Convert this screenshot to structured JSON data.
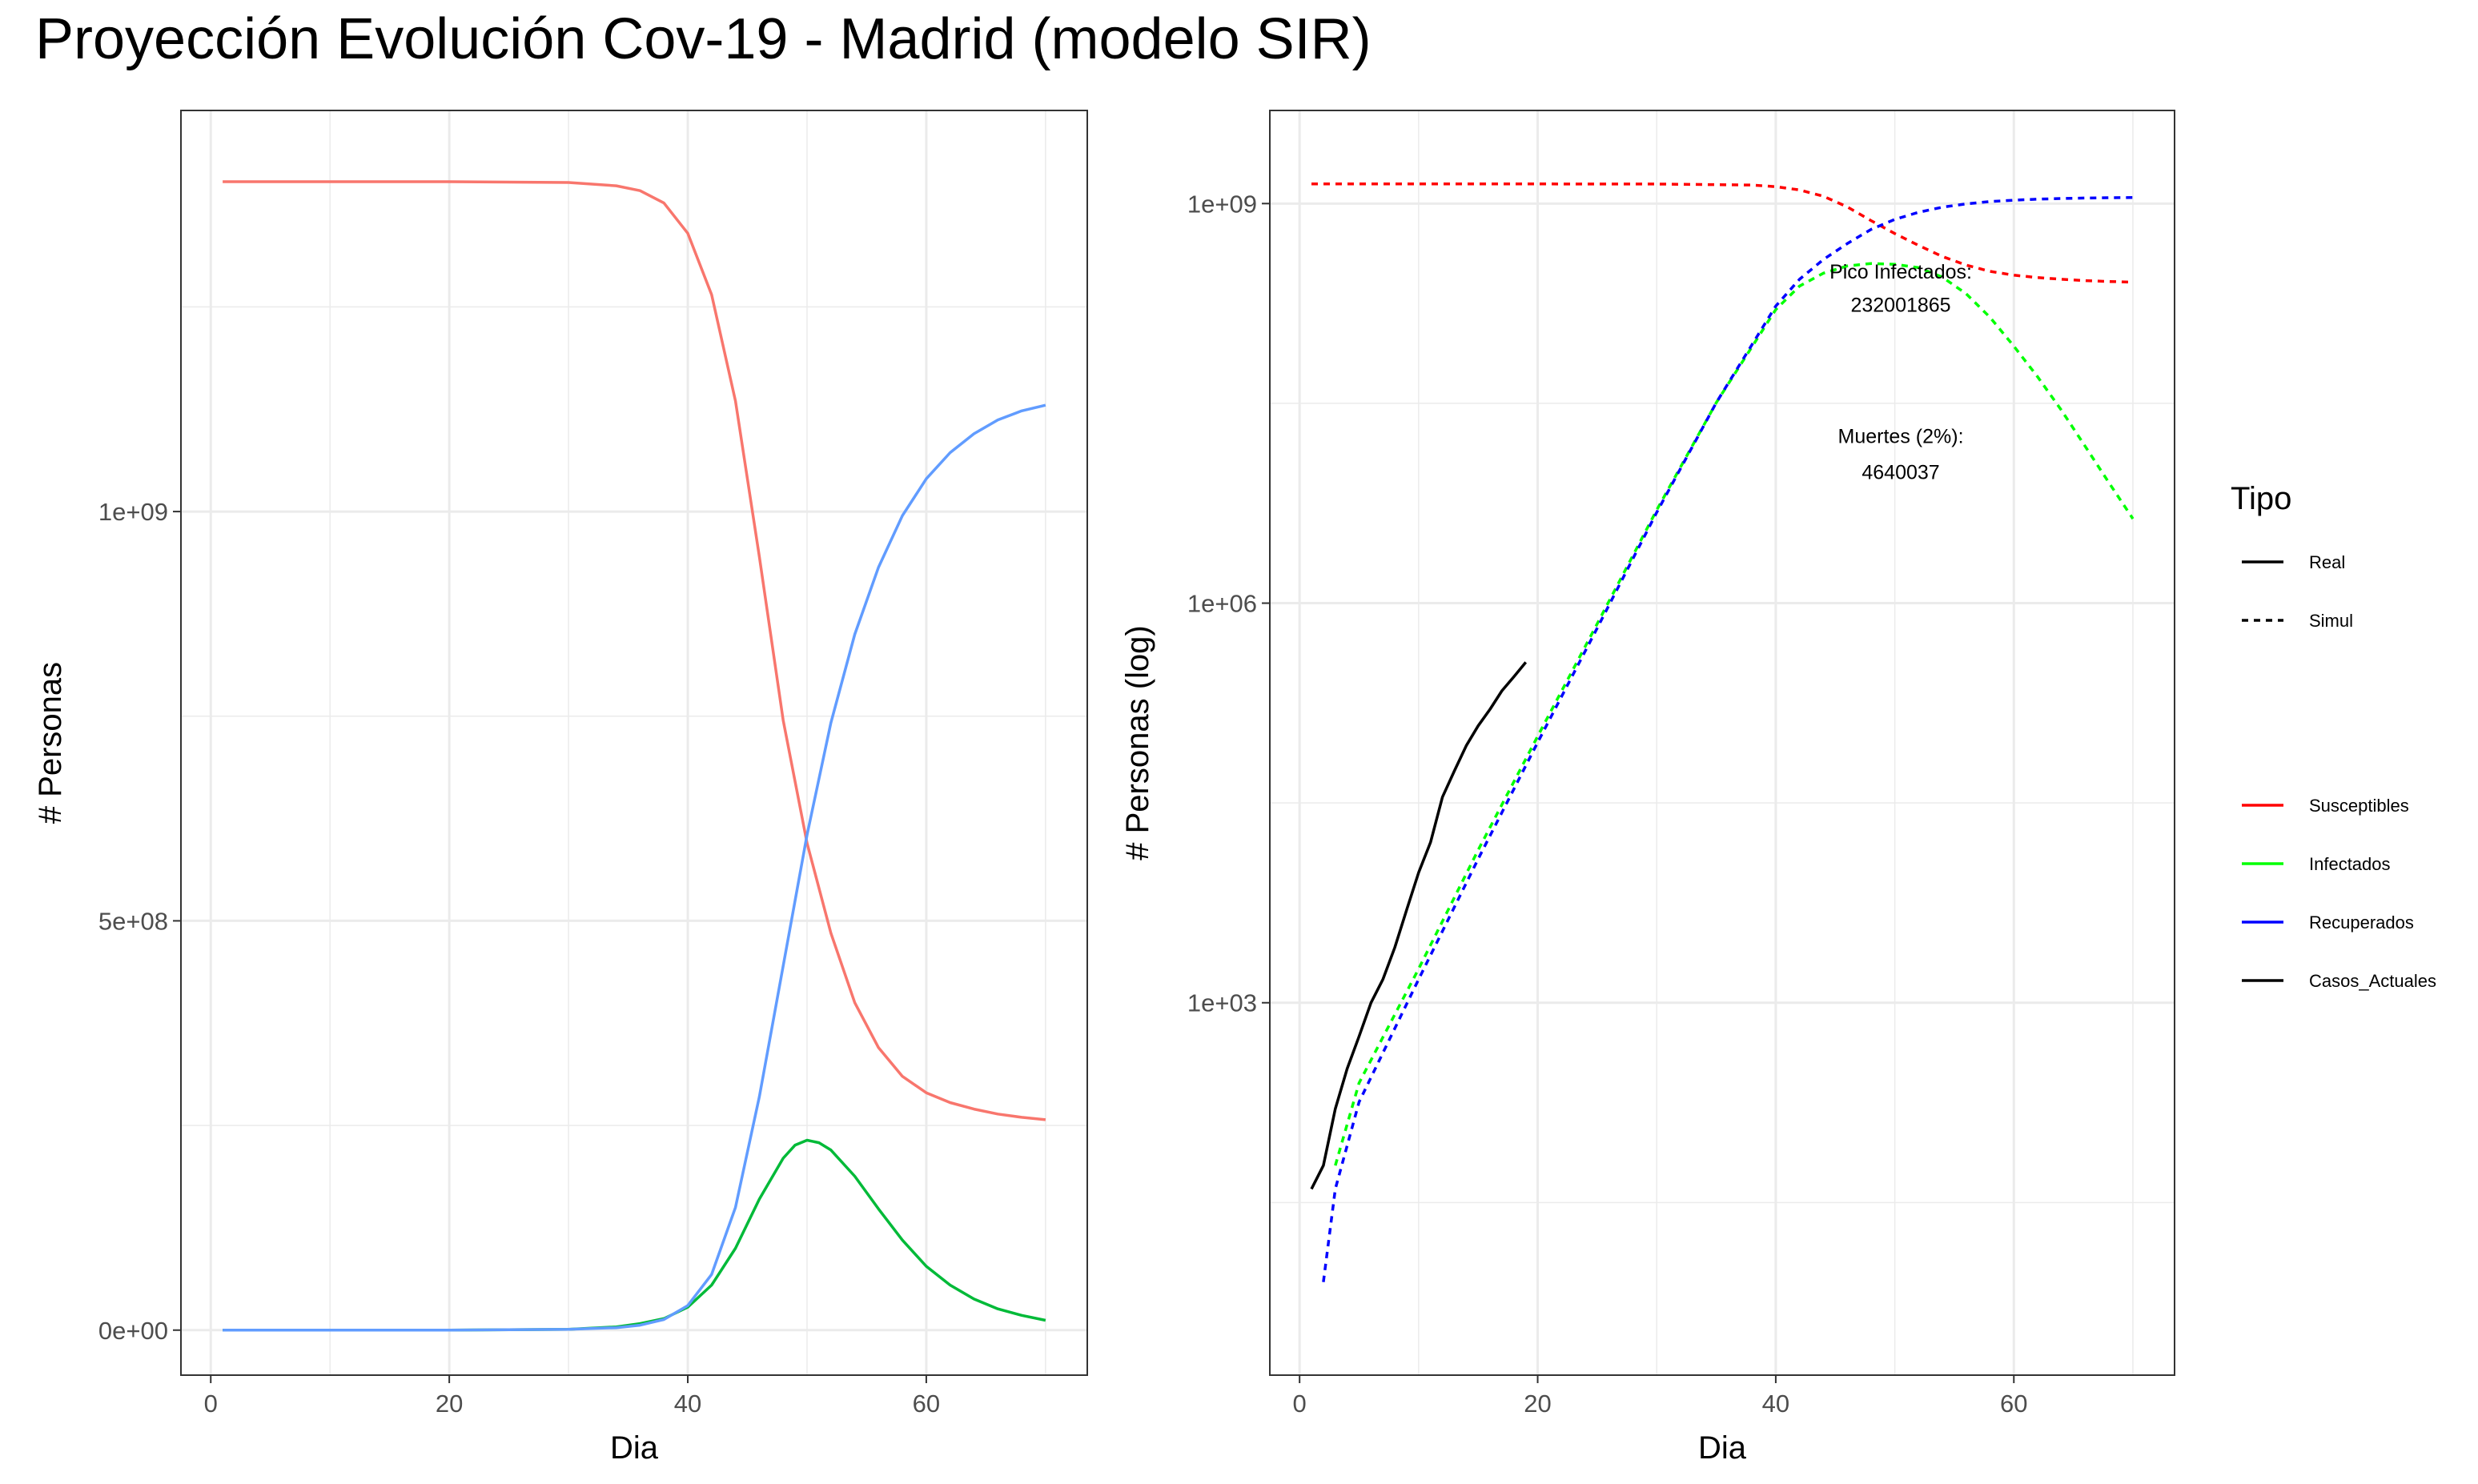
{
  "title": "Proyección Evolución Cov-19 - Madrid (modelo SIR)",
  "colors": {
    "left_susceptibles": "#F8766D",
    "left_infectados": "#00BA38",
    "left_recuperados": "#619CFF",
    "susceptibles": "#FF0000",
    "infectados": "#00FF00",
    "recuperados": "#0000FF",
    "casos_actuales": "#000000",
    "grid": "#EBEBEB",
    "panel_border": "#333333"
  },
  "chart_data": [
    {
      "type": "line",
      "xlabel": "Dia",
      "ylabel": "# Personas",
      "xlim": [
        -2.5,
        73.5
      ],
      "ylim": [
        -55000000,
        1490000000
      ],
      "x_ticks": [
        0,
        20,
        40,
        60
      ],
      "x_tick_labels": [
        "0",
        "20",
        "40",
        "60"
      ],
      "y_ticks": [
        0,
        500000000,
        1000000000
      ],
      "y_tick_labels": [
        "0e+00",
        "5e+08",
        "1e+09"
      ],
      "grid": true,
      "series": [
        {
          "key": "susceptibles",
          "color": "left_susceptibles",
          "x": [
            1,
            10,
            20,
            30,
            34,
            36,
            38,
            40,
            42,
            44,
            46,
            48,
            50,
            52,
            54,
            56,
            58,
            60,
            62,
            64,
            66,
            68,
            70
          ],
          "values": [
            1403000000,
            1403000000,
            1403000000,
            1402000000,
            1398000000,
            1392000000,
            1377000000,
            1340000000,
            1265000000,
            1135000000,
            945000000,
            745000000,
            595000000,
            485000000,
            400000000,
            345000000,
            310000000,
            290000000,
            278000000,
            270000000,
            264000000,
            260000000,
            257000000
          ]
        },
        {
          "key": "infectados",
          "color": "left_infectados",
          "x": [
            1,
            10,
            20,
            30,
            34,
            36,
            38,
            40,
            42,
            44,
            46,
            48,
            49,
            50,
            51,
            52,
            54,
            56,
            58,
            60,
            62,
            64,
            66,
            68,
            70
          ],
          "values": [
            0,
            0,
            0,
            1000000,
            4000000,
            8000000,
            14000000,
            28000000,
            55000000,
            100000000,
            160000000,
            210000000,
            226000000,
            232000000,
            229000000,
            220000000,
            188000000,
            148000000,
            110000000,
            78000000,
            55000000,
            38000000,
            26000000,
            18000000,
            12000000
          ]
        },
        {
          "key": "recuperados",
          "color": "left_recuperados",
          "x": [
            1,
            10,
            20,
            30,
            34,
            36,
            38,
            40,
            42,
            44,
            46,
            48,
            50,
            52,
            54,
            56,
            58,
            60,
            62,
            64,
            66,
            68,
            70
          ],
          "values": [
            0,
            0,
            0,
            1000000,
            3000000,
            6000000,
            13000000,
            30000000,
            68000000,
            150000000,
            285000000,
            445000000,
            605000000,
            742000000,
            850000000,
            932000000,
            995000000,
            1040000000,
            1072000000,
            1095000000,
            1112000000,
            1123000000,
            1130000000
          ]
        }
      ]
    },
    {
      "type": "line",
      "log_y": true,
      "xlabel": "Dia",
      "ylabel": "# Personas (log)",
      "xlim": [
        -2.5,
        73.5
      ],
      "ylim": [
        1.6,
        5000000000
      ],
      "x_ticks": [
        0,
        20,
        40,
        60
      ],
      "x_tick_labels": [
        "0",
        "20",
        "40",
        "60"
      ],
      "y_ticks": [
        1000,
        1000000,
        1000000000
      ],
      "y_tick_labels": [
        "1e+03",
        "1e+06",
        "1e+09"
      ],
      "y_minor_ticks": [
        31.6,
        31623,
        31622777
      ],
      "grid": true,
      "series": [
        {
          "key": "susceptibles",
          "label": "Susceptibles",
          "color": "susceptibles",
          "dash": true,
          "x": [
            1,
            10,
            20,
            30,
            38,
            40,
            42,
            44,
            46,
            48,
            50,
            52,
            54,
            56,
            58,
            60,
            62,
            64,
            66,
            68,
            70
          ],
          "values": [
            1403000000,
            1403000000,
            1403000000,
            1402000000,
            1377000000,
            1340000000,
            1265000000,
            1135000000,
            945000000,
            745000000,
            595000000,
            485000000,
            400000000,
            345000000,
            310000000,
            290000000,
            278000000,
            270000000,
            264000000,
            260000000,
            257000000
          ]
        },
        {
          "key": "infectados",
          "label": "Infectados",
          "color": "infectados",
          "dash": true,
          "x": [
            3,
            5,
            10,
            15,
            20,
            25,
            30,
            35,
            40,
            42,
            44,
            46,
            48,
            50,
            52,
            54,
            56,
            58,
            60,
            62,
            64,
            66,
            68,
            70
          ],
          "values": [
            60,
            250,
            1800,
            14000,
            100000,
            700000,
            5000000,
            32000000,
            160000000,
            240000000,
            300000000,
            340000000,
            355000000,
            350000000,
            330000000,
            280000000,
            210000000,
            140000000,
            85000000,
            50000000,
            28000000,
            15000000,
            8000000,
            4300000
          ]
        },
        {
          "key": "recuperados",
          "label": "Recuperados",
          "color": "recuperados",
          "dash": true,
          "x": [
            2,
            3,
            5,
            10,
            15,
            20,
            25,
            30,
            35,
            40,
            42,
            44,
            46,
            48,
            50,
            52,
            54,
            56,
            58,
            60,
            62,
            64,
            66,
            68,
            70
          ],
          "values": [
            8,
            40,
            180,
            1500,
            12000,
            90000,
            650000,
            4800000,
            32000000,
            170000000,
            270000000,
            380000000,
            500000000,
            640000000,
            760000000,
            860000000,
            940000000,
            995000000,
            1035000000,
            1060000000,
            1080000000,
            1092000000,
            1100000000,
            1106000000,
            1110000000
          ]
        },
        {
          "key": "casos_actuales",
          "label": "Casos_Actuales",
          "color": "casos_actuales",
          "dash": false,
          "x": [
            1,
            2,
            3,
            4,
            5,
            6,
            7,
            8,
            9,
            10,
            11,
            12,
            13,
            14,
            15,
            16,
            17,
            18,
            19
          ],
          "values": [
            40,
            60,
            160,
            320,
            560,
            1000,
            1500,
            2600,
            5000,
            9500,
            16000,
            35000,
            55000,
            85000,
            120000,
            160000,
            220000,
            280000,
            360000
          ]
        }
      ],
      "annotations": [
        {
          "key": "pico",
          "lines": [
            "Pico  Infectados:",
            "232001865"
          ],
          "x": 50.5,
          "y_log": [
            310000000,
            175000000
          ]
        },
        {
          "key": "muertes",
          "lines": [
            "Muertes (2%):",
            "4640037"
          ],
          "x": 50.5,
          "y_log": [
            18000000,
            9700000
          ]
        }
      ]
    }
  ],
  "legend": {
    "title": "Tipo",
    "linetype_items": [
      {
        "label": "Real",
        "dash": false
      },
      {
        "label": "Simul",
        "dash": true
      }
    ],
    "color_items": [
      {
        "label": "Susceptibles",
        "color": "susceptibles"
      },
      {
        "label": "Infectados",
        "color": "infectados"
      },
      {
        "label": "Recuperados",
        "color": "recuperados"
      },
      {
        "label": "Casos_Actuales",
        "color": "casos_actuales"
      }
    ]
  }
}
